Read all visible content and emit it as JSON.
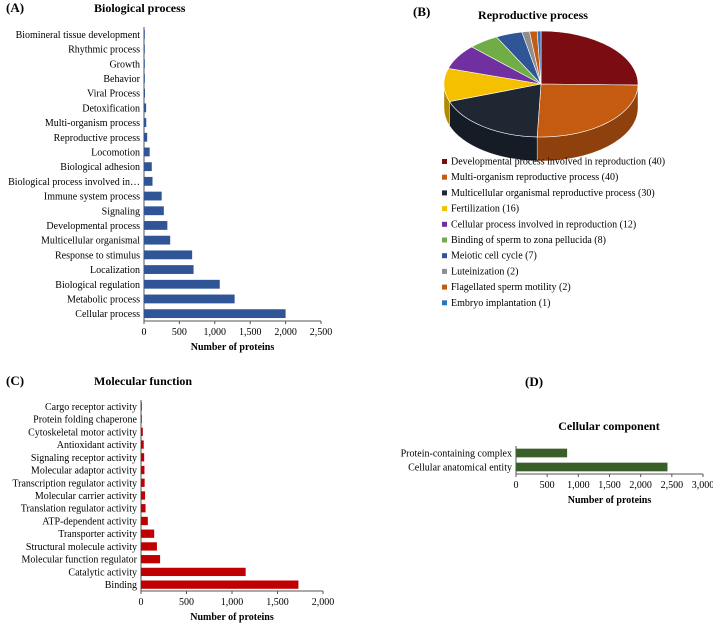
{
  "panels": {
    "a": {
      "letter": "(A)"
    },
    "b": {
      "letter": "(B)"
    },
    "c": {
      "letter": "(C)"
    },
    "d": {
      "letter": "(D)"
    }
  },
  "colors": {
    "biological": "#2f5597",
    "molecular": "#c00000",
    "cellular": "#3a5f28"
  },
  "chart_data": [
    {
      "id": "biological",
      "type": "bar",
      "orientation": "horizontal",
      "title": "Biological process",
      "xlabel": "Number of proteins",
      "xlim": [
        0,
        2500
      ],
      "xticks": [
        0,
        500,
        1000,
        1500,
        2000,
        2500
      ],
      "xtick_labels": [
        "0",
        "500",
        "1,000",
        "1,500",
        "2,000",
        "2,500"
      ],
      "categories": [
        "Biomineral tissue development",
        "Rhythmic process",
        "Growth",
        "Behavior",
        "Viral Process",
        "Detoxification",
        "Multi-organism process",
        "Reproductive process",
        "Locomotion",
        "Biological adhesion",
        "Biological process involved in…",
        "Immune system process",
        "Signaling",
        "Developmental process",
        "Multicellular organismal",
        "Response to stimulus",
        "Localization",
        "Biological regulation",
        "Metabolic process",
        "Cellular process"
      ],
      "values": [
        3,
        8,
        10,
        12,
        14,
        30,
        32,
        45,
        80,
        110,
        120,
        250,
        280,
        330,
        370,
        680,
        700,
        1070,
        1280,
        2000
      ],
      "grid": false,
      "legend": "none"
    },
    {
      "id": "reproductive",
      "type": "pie",
      "title": "Reproductive process",
      "legend": "below",
      "categories": [
        "Developmental process involved in reproduction (40)",
        "Multi-organism reproductive process (40)",
        "Multicellular  organismal reproductive process (30)",
        "Fertilization  (16)",
        "Cellular process involved in reproduction (12)",
        "Binding of sperm to zona pellucida (8)",
        "Meiotic cell cycle (7)",
        "Luteinization  (2)",
        "Flagellated sperm motility (2)",
        "Embryo implantation  (1)"
      ],
      "values": [
        40,
        40,
        30,
        16,
        12,
        8,
        7,
        2,
        2,
        1
      ],
      "colors": [
        "#7b0d12",
        "#c55a11",
        "#1f2733",
        "#f5c000",
        "#7030a0",
        "#70ad47",
        "#2f5597",
        "#8e8e8e",
        "#c55a11",
        "#2e75b6"
      ]
    },
    {
      "id": "molecular",
      "type": "bar",
      "orientation": "horizontal",
      "title": "Molecular function",
      "xlabel": "Number of proteins",
      "xlim": [
        0,
        2000
      ],
      "xticks": [
        0,
        500,
        1000,
        1500,
        2000
      ],
      "xtick_labels": [
        "0",
        "500",
        "1,000",
        "1,500",
        "2,000"
      ],
      "categories": [
        "Cargo receptor activity",
        "Protein folding chaperone",
        "Cytoskeletal motor activity",
        "Antioxidant activity",
        "Signaling receptor activity",
        "Molecular adaptor activity",
        "Transcription regulator activity",
        "Molecular carrier activity",
        "Translation regulator activity",
        "ATP-dependent activity",
        "Transporter activity",
        "Structural molecule activity",
        "Molecular function regulator",
        "Catalytic activity",
        "Binding"
      ],
      "values": [
        3,
        5,
        20,
        30,
        35,
        38,
        40,
        45,
        50,
        75,
        145,
        175,
        210,
        1150,
        1730
      ],
      "grid": false,
      "legend": "none"
    },
    {
      "id": "cellular",
      "type": "bar",
      "orientation": "horizontal",
      "title": "Cellular component",
      "xlabel": "Number of proteins",
      "xlim": [
        0,
        3000
      ],
      "xticks": [
        0,
        500,
        1000,
        1500,
        2000,
        2500,
        3000
      ],
      "xtick_labels": [
        "0",
        "500",
        "1,000",
        "1,500",
        "2,000",
        "2,500",
        "3,000"
      ],
      "categories": [
        "Protein-containing complex",
        "Cellular anatomical entity"
      ],
      "values": [
        820,
        2430
      ],
      "grid": false,
      "legend": "none"
    }
  ]
}
